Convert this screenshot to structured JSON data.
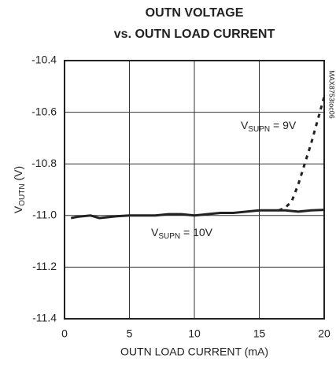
{
  "chart_data": {
    "type": "line",
    "title": [
      "OUTN VOLTAGE",
      "vs. OUTN LOAD CURRENT"
    ],
    "xlabel": "OUTN LOAD CURRENT (mA)",
    "ylabel": {
      "main": "V",
      "sub": "OUTN",
      "rest": " (V)"
    },
    "side_note": "MAX8753toc06",
    "xlim": [
      0,
      20
    ],
    "xticks": [
      0,
      5,
      10,
      15,
      20
    ],
    "ylim": [
      -11.4,
      -10.4
    ],
    "yticks": [
      -10.4,
      -10.6,
      -10.8,
      {
        "value": -11.0,
        "label": "-11.0"
      },
      -11.2,
      -11.4
    ],
    "grid": true,
    "series": [
      {
        "name": {
          "main": "V",
          "sub": "SUPN",
          "rest": " = 10V"
        },
        "color": "#222222",
        "dash": false,
        "x": [
          0.5,
          1,
          2,
          2.7,
          4,
          5,
          6,
          7,
          8,
          9,
          10,
          11,
          12,
          13,
          14,
          15,
          16,
          17,
          18,
          19,
          20
        ],
        "values": [
          -11.01,
          -11.005,
          -11.0,
          -11.01,
          -11.003,
          -11.0,
          -11.0,
          -11.0,
          -10.995,
          -10.995,
          -11.0,
          -10.995,
          -10.99,
          -10.99,
          -10.985,
          -10.98,
          -10.98,
          -10.98,
          -10.985,
          -10.98,
          -10.978
        ]
      },
      {
        "name": {
          "main": "V",
          "sub": "SUPN",
          "rest": " = 9V"
        },
        "color": "#222222",
        "dash": true,
        "x": [
          16.5,
          17,
          17.5,
          18,
          18.5,
          19,
          19.5,
          20
        ],
        "values": [
          -10.98,
          -10.97,
          -10.945,
          -10.88,
          -10.8,
          -10.72,
          -10.63,
          -10.54
        ]
      }
    ]
  }
}
